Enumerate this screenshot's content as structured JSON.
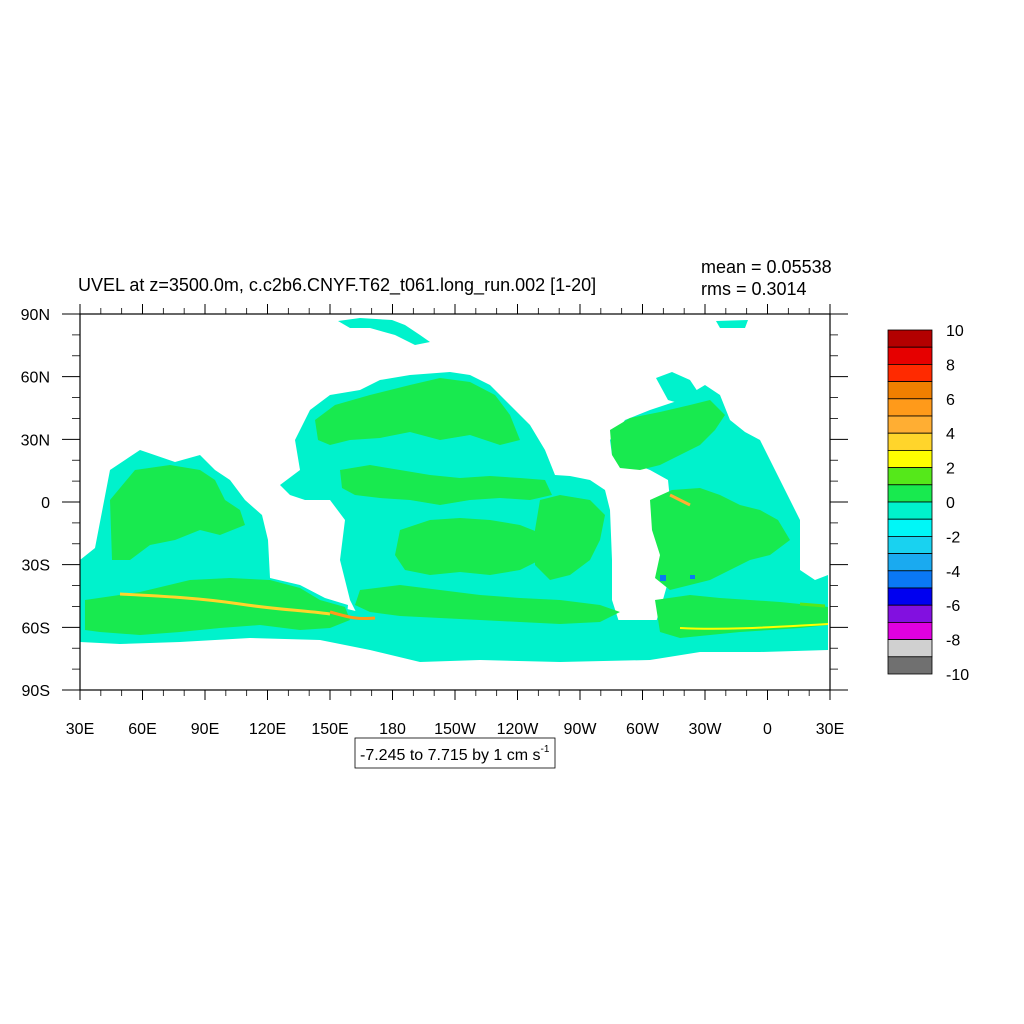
{
  "chart_data": {
    "type": "heatmap",
    "title": "UVEL at z=3500.0m, c.c2b6.CNYF.T62_t061.long_run.002 [1-20]",
    "stats": {
      "mean": "mean = 0.05538",
      "rms": "rms = 0.3014"
    },
    "contour_info": {
      "text": "-7.245 to 7.715 by 1 cm s",
      "superscript": "-1"
    },
    "x_ticks": [
      "30E",
      "60E",
      "90E",
      "120E",
      "150E",
      "180",
      "150W",
      "120W",
      "90W",
      "60W",
      "30W",
      "0",
      "30E"
    ],
    "y_ticks": [
      "90N",
      "60N",
      "30N",
      "0",
      "30S",
      "60S",
      "90S"
    ],
    "x_tick_lon": [
      30,
      60,
      90,
      120,
      150,
      180,
      210,
      240,
      270,
      300,
      330,
      360,
      390
    ],
    "y_tick_lat": [
      90,
      60,
      30,
      0,
      -30,
      -60,
      -90
    ],
    "xlim": [
      30,
      390
    ],
    "ylim": [
      -90,
      90
    ],
    "colorbar": {
      "labels": [
        "10",
        "8",
        "6",
        "4",
        "2",
        "0",
        "-2",
        "-4",
        "-6",
        "-8",
        "-10"
      ],
      "colors_top_to_bottom": [
        "#b30000",
        "#e60000",
        "#ff2a00",
        "#f07f00",
        "#ff9a1a",
        "#ffae33",
        "#ffd52b",
        "#ffff00",
        "#55e81a",
        "#18ea4f",
        "#00f2cc",
        "#00f7f7",
        "#19d2f0",
        "#1aaaf0",
        "#0a78f5",
        "#0000f0",
        "#8210e0",
        "#e000e0",
        "#d0d0d0",
        "#707070"
      ]
    }
  }
}
